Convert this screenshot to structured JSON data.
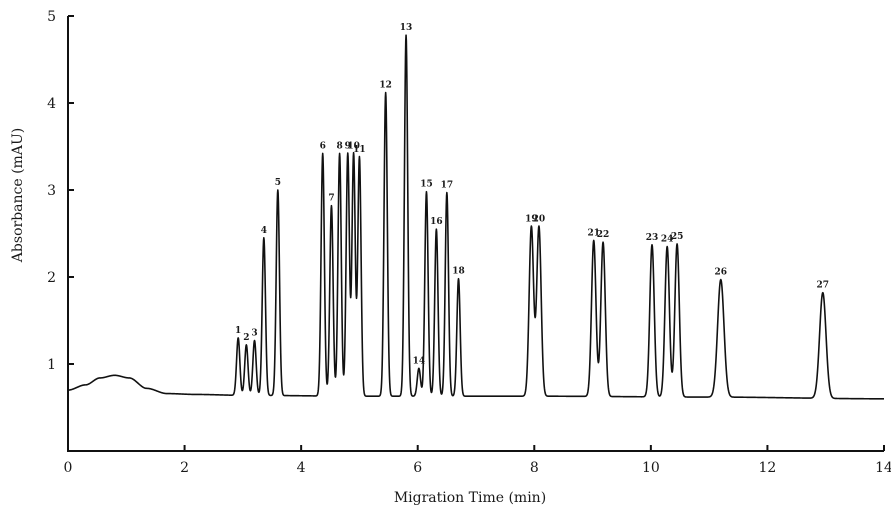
{
  "chart_data": {
    "type": "line",
    "xlabel": "Migration Time (min)",
    "ylabel": "Absorbance (mAU)",
    "xlim": [
      0,
      14
    ],
    "ylim": [
      0,
      5
    ],
    "xticks": [
      0,
      2,
      4,
      6,
      8,
      10,
      12,
      14
    ],
    "yticks": [
      1,
      2,
      3,
      4,
      5
    ],
    "grid": false,
    "baseline": [
      {
        "x": 0.0,
        "y": 0.7
      },
      {
        "x": 0.3,
        "y": 0.76
      },
      {
        "x": 0.55,
        "y": 0.84
      },
      {
        "x": 0.8,
        "y": 0.87
      },
      {
        "x": 1.05,
        "y": 0.84
      },
      {
        "x": 1.35,
        "y": 0.72
      },
      {
        "x": 1.7,
        "y": 0.66
      },
      {
        "x": 2.2,
        "y": 0.65
      },
      {
        "x": 3.0,
        "y": 0.64
      },
      {
        "x": 5.0,
        "y": 0.63
      },
      {
        "x": 8.0,
        "y": 0.63
      },
      {
        "x": 11.0,
        "y": 0.62
      },
      {
        "x": 14.0,
        "y": 0.6
      }
    ],
    "series": [
      {
        "values": [
          {
            "label": "1",
            "x": 2.92,
            "y": 1.3
          },
          {
            "label": "2",
            "x": 3.06,
            "y": 1.22
          },
          {
            "label": "3",
            "x": 3.2,
            "y": 1.27
          },
          {
            "label": "4",
            "x": 3.36,
            "y": 2.45
          },
          {
            "label": "5",
            "x": 3.6,
            "y": 3.0
          },
          {
            "label": "6",
            "x": 4.37,
            "y": 3.42
          },
          {
            "label": "7",
            "x": 4.52,
            "y": 2.82
          },
          {
            "label": "8",
            "x": 4.66,
            "y": 3.42
          },
          {
            "label": "9",
            "x": 4.8,
            "y": 3.42
          },
          {
            "label": "10",
            "x": 4.9,
            "y": 3.42
          },
          {
            "label": "11",
            "x": 5.0,
            "y": 3.38
          },
          {
            "label": "12",
            "x": 5.45,
            "y": 4.12
          },
          {
            "label": "13",
            "x": 5.8,
            "y": 4.78
          },
          {
            "label": "14",
            "x": 6.02,
            "y": 0.95
          },
          {
            "label": "15",
            "x": 6.15,
            "y": 2.98
          },
          {
            "label": "16",
            "x": 6.32,
            "y": 2.55
          },
          {
            "label": "17",
            "x": 6.5,
            "y": 2.97
          },
          {
            "label": "18",
            "x": 6.7,
            "y": 1.98
          },
          {
            "label": "19",
            "x": 7.95,
            "y": 2.58
          },
          {
            "label": "20",
            "x": 8.08,
            "y": 2.58
          },
          {
            "label": "21",
            "x": 9.02,
            "y": 2.42
          },
          {
            "label": "22",
            "x": 9.18,
            "y": 2.4
          },
          {
            "label": "23",
            "x": 10.02,
            "y": 2.37
          },
          {
            "label": "24",
            "x": 10.28,
            "y": 2.35
          },
          {
            "label": "25",
            "x": 10.45,
            "y": 2.38
          },
          {
            "label": "26",
            "x": 11.2,
            "y": 1.97
          },
          {
            "label": "27",
            "x": 12.95,
            "y": 1.82
          }
        ]
      }
    ]
  }
}
